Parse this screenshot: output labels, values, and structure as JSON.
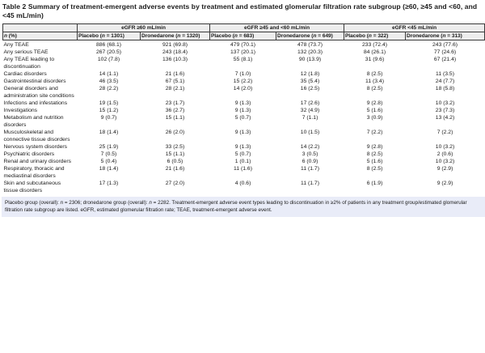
{
  "title": {
    "line1": "Table 2 Summary of treatment-emergent adverse events by treatment and estimated glomerular filtration rate subgroup",
    "line2": "(≥60, ≥45 and <60, and <45 mL/min)"
  },
  "table": {
    "group_headers": [
      "eGFR ≥60 mL/min",
      "eGFR ≥45 and <60 mL/min",
      "eGFR <45 mL/min"
    ],
    "column_headers": [
      "n (%)",
      "Placebo (n = 1301)",
      "Dronedarone (n = 1320)",
      "Placebo (n = 683)",
      "Dronedarone (n = 649)",
      "Placebo (n = 322)",
      "Dronedarone (n = 313)"
    ],
    "rows": [
      {
        "label": "Any TEAE",
        "values": [
          "886 (68.1)",
          "921 (69.8)",
          "479 (70.1)",
          "478 (73.7)",
          "233 (72.4)",
          "243 (77.6)"
        ]
      },
      {
        "label": "Any serious TEAE",
        "values": [
          "267 (20.5)",
          "243 (18.4)",
          "137 (20.1)",
          "132 (20.3)",
          "84 (26.1)",
          "77 (24.6)"
        ]
      },
      {
        "label": "Any TEAE leading to discontinuation",
        "values": [
          "102 (7.8)",
          "136 (10.3)",
          "55 (8.1)",
          "90 (13.9)",
          "31 (9.6)",
          "67 (21.4)"
        ]
      },
      {
        "label": "Cardiac disorders",
        "values": [
          "14 (1.1)",
          "21 (1.6)",
          "7 (1.0)",
          "12 (1.8)",
          "8 (2.5)",
          "11 (3.5)"
        ]
      },
      {
        "label": "Gastrointestinal disorders",
        "values": [
          "46 (3.5)",
          "67 (5.1)",
          "15 (2.2)",
          "35 (5.4)",
          "11 (3.4)",
          "24 (7.7)"
        ]
      },
      {
        "label": "General disorders and administration site conditions",
        "values": [
          "28 (2.2)",
          "28 (2.1)",
          "14 (2.0)",
          "16 (2.5)",
          "8 (2.5)",
          "18 (5.8)"
        ]
      },
      {
        "label": "Infections and infestations",
        "values": [
          "19 (1.5)",
          "23 (1.7)",
          "9 (1.3)",
          "17 (2.6)",
          "9 (2.8)",
          "10 (3.2)"
        ]
      },
      {
        "label": "Investigations",
        "values": [
          "15 (1.2)",
          "36 (2.7)",
          "9 (1.3)",
          "32 (4.9)",
          "5 (1.6)",
          "23 (7.3)"
        ]
      },
      {
        "label": "Metabolism and nutrition disorders",
        "values": [
          "9 (0.7)",
          "15 (1.1)",
          "5 (0.7)",
          "7 (1.1)",
          "3 (0.9)",
          "13 (4.2)"
        ]
      },
      {
        "label": "Musculoskeletal and connective tissue disorders",
        "values": [
          "18 (1.4)",
          "26 (2.0)",
          "9 (1.3)",
          "10 (1.5)",
          "7 (2.2)",
          "7 (2.2)"
        ]
      },
      {
        "label": "Nervous system disorders",
        "values": [
          "25 (1.9)",
          "33 (2.5)",
          "9 (1.3)",
          "14 (2.2)",
          "9 (2.8)",
          "10 (3.2)"
        ]
      },
      {
        "label": "Psychiatric disorders",
        "values": [
          "7 (0.5)",
          "15 (1.1)",
          "5 (0.7)",
          "3 (0.5)",
          "8 (2.5)",
          "2 (0.6)"
        ]
      },
      {
        "label": "Renal and urinary disorders",
        "values": [
          "5 (0.4)",
          "6 (0.5)",
          "1 (0.1)",
          "6 (0.9)",
          "5 (1.6)",
          "10 (3.2)"
        ]
      },
      {
        "label": "Respiratory, thoracic and mediastinal disorders",
        "values": [
          "18 (1.4)",
          "21 (1.6)",
          "11 (1.6)",
          "11 (1.7)",
          "8 (2.5)",
          "9 (2.9)"
        ]
      },
      {
        "label": "Skin and subcutaneous tissue disorders",
        "values": [
          "17 (1.3)",
          "27 (2.0)",
          "4 (0.6)",
          "11 (1.7)",
          "6 (1.9)",
          "9 (2.9)"
        ]
      }
    ]
  },
  "footnote": "Placebo group (overall): n = 2306; dronedarone group (overall): n = 2282. Treatment-emergent adverse event types leading to discontinuation in ≥2% of patients in any treatment group/estimated glomerular filtration rate subgroup are listed. eGFR, estimated glomerular filtration rate; TEAE, treatment-emergent adverse event.",
  "colors": {
    "border": "#3a3a3a",
    "header_bg": "#ededed",
    "footnote_bg": "#e9ecf8"
  }
}
